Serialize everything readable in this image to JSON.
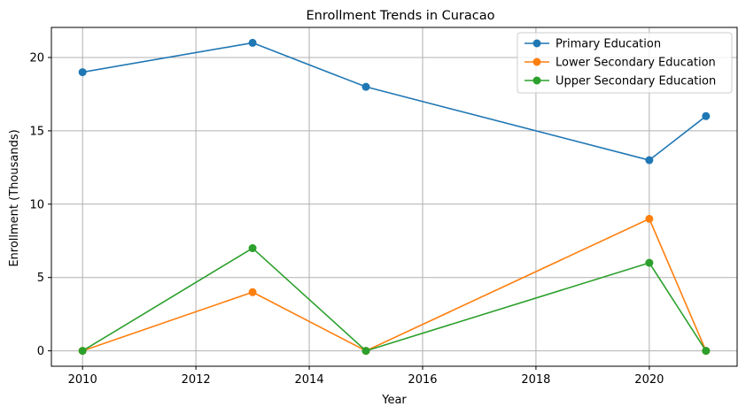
{
  "chart_data": {
    "type": "line",
    "title": "Enrollment Trends in Curacao",
    "xlabel": "Year",
    "ylabel": "Enrollment (Thousands)",
    "x": [
      2010,
      2013,
      2015,
      2020,
      2021
    ],
    "xlim": [
      2009.45,
      2021.55
    ],
    "ylim": [
      -1.05,
      22.05
    ],
    "xticks": [
      2010,
      2012,
      2014,
      2016,
      2018,
      2020
    ],
    "yticks": [
      0,
      5,
      10,
      15,
      20
    ],
    "grid": true,
    "legend_position": "top-right",
    "series": [
      {
        "name": "Primary Education",
        "color": "#1f77b4",
        "values": [
          19,
          21,
          18,
          13,
          16
        ]
      },
      {
        "name": "Lower Secondary Education",
        "color": "#ff7f0e",
        "values": [
          0,
          4,
          0,
          9,
          0
        ]
      },
      {
        "name": "Upper Secondary Education",
        "color": "#2ca02c",
        "values": [
          0,
          7,
          0,
          6,
          0
        ]
      }
    ]
  }
}
